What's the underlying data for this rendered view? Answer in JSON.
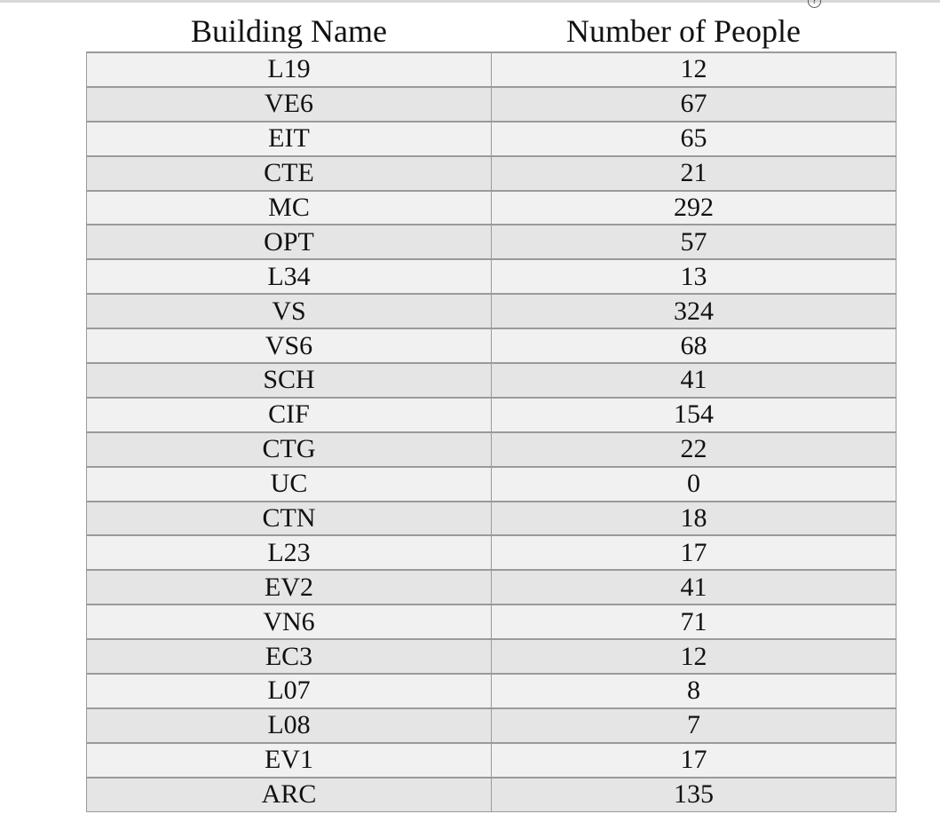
{
  "table": {
    "headers": {
      "building": "Building Name",
      "people": "Number of People",
      "help_icon": "?"
    },
    "rows": [
      {
        "building": "L19",
        "people": "12"
      },
      {
        "building": "VE6",
        "people": "67"
      },
      {
        "building": "EIT",
        "people": "65"
      },
      {
        "building": "CTE",
        "people": "21"
      },
      {
        "building": "MC",
        "people": "292"
      },
      {
        "building": "OPT",
        "people": "57"
      },
      {
        "building": "L34",
        "people": "13"
      },
      {
        "building": "VS",
        "people": "324"
      },
      {
        "building": "VS6",
        "people": "68"
      },
      {
        "building": "SCH",
        "people": "41"
      },
      {
        "building": "CIF",
        "people": "154"
      },
      {
        "building": "CTG",
        "people": "22"
      },
      {
        "building": "UC",
        "people": "0"
      },
      {
        "building": "CTN",
        "people": "18"
      },
      {
        "building": "L23",
        "people": "17"
      },
      {
        "building": "EV2",
        "people": "41"
      },
      {
        "building": "VN6",
        "people": "71"
      },
      {
        "building": "EC3",
        "people": "12"
      },
      {
        "building": "L07",
        "people": "8"
      },
      {
        "building": "L08",
        "people": "7"
      },
      {
        "building": "EV1",
        "people": "17"
      },
      {
        "building": "ARC",
        "people": "135"
      }
    ]
  }
}
